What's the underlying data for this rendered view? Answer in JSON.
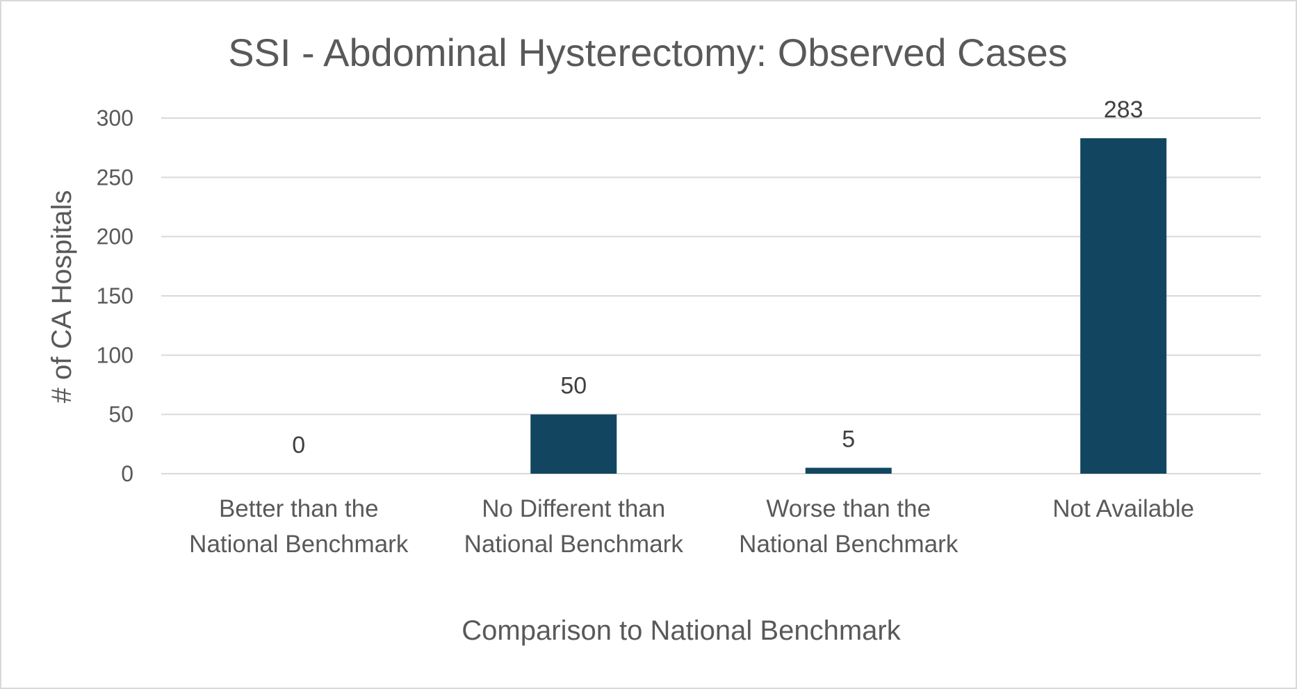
{
  "chart_data": {
    "type": "bar",
    "title": "SSI - Abdominal Hysterectomy: Observed Cases",
    "xlabel": "Comparison to National Benchmark",
    "ylabel": "# of CA Hospitals",
    "categories": [
      [
        "Better than the",
        "National Benchmark"
      ],
      [
        "No Different than",
        "National Benchmark"
      ],
      [
        "Worse than the",
        "National Benchmark"
      ],
      [
        "Not Available"
      ]
    ],
    "values": [
      0,
      50,
      5,
      283
    ],
    "ylim": [
      0,
      300
    ],
    "yticks": [
      0,
      50,
      100,
      150,
      200,
      250,
      300
    ],
    "grid": true,
    "data_labels": true,
    "legend": "none",
    "bar_color": "#124660",
    "grid_color": "#d9d9d9"
  }
}
